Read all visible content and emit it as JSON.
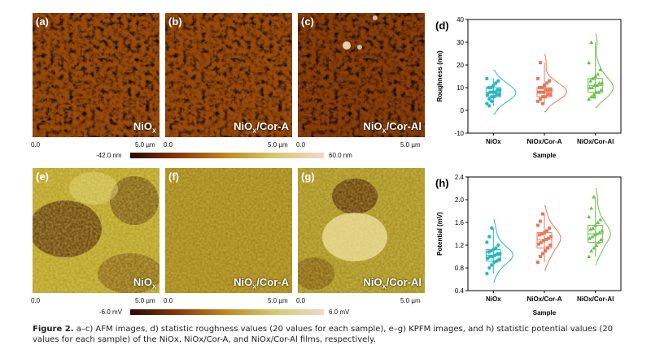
{
  "panels_top": [
    {
      "label": "(a)",
      "name": "NiOx",
      "suffix": ""
    },
    {
      "label": "(b)",
      "name": "NiOx",
      "suffix": "/Cor-A"
    },
    {
      "label": "(c)",
      "name": "NiOx",
      "suffix": "/Cor-Al"
    }
  ],
  "panels_bottom": [
    {
      "label": "(e)",
      "name": "NiOx",
      "suffix": ""
    },
    {
      "label": "(f)",
      "name": "NiOx",
      "suffix": "/Cor-A"
    },
    {
      "label": "(g)",
      "name": "NiOx",
      "suffix": "/Cor-Al"
    }
  ],
  "scale": {
    "start": "0.0",
    "end": "5.0 µm"
  },
  "colorbar_top": {
    "min": "-42.0 nm",
    "max": "60.0 nm"
  },
  "colorbar_bottom": {
    "min": "-6.0 mV",
    "max": "6.0 mV"
  },
  "colors": {
    "afm_dark": "#5a1a00",
    "afm_mid": "#b5651d",
    "afm_light": "#e6d15a",
    "kpfm_dark": "#4a2a00",
    "kpfm_light": "#e8dc7a",
    "teal": "#2ab7c4",
    "salmon": "#e8785a",
    "green": "#6cc24a"
  },
  "chart_data": [
    {
      "type": "scatter",
      "panel": "(d)",
      "title": "",
      "xlabel": "Sample",
      "ylabel": "Roughness (nm)",
      "categories": [
        "NiOx",
        "NiOx/Cor-A",
        "NiOx/Cor-Al"
      ],
      "ylim": [
        -10,
        40
      ],
      "yticks": [
        -10,
        0,
        10,
        20,
        30,
        40
      ],
      "series": [
        {
          "values": [
            3,
            5,
            6,
            6,
            7,
            7,
            7,
            8,
            8,
            8,
            9,
            9,
            10,
            10,
            11,
            12,
            13,
            14,
            2,
            4
          ]
        },
        {
          "values": [
            4,
            5,
            6,
            6,
            7,
            7,
            8,
            8,
            8,
            9,
            9,
            9,
            10,
            10,
            11,
            12,
            13,
            14,
            21,
            3
          ]
        },
        {
          "values": [
            5,
            6,
            7,
            8,
            8,
            9,
            10,
            10,
            11,
            11,
            12,
            12,
            13,
            14,
            15,
            16,
            18,
            21,
            30,
            6
          ]
        }
      ]
    },
    {
      "type": "scatter",
      "panel": "(h)",
      "title": "",
      "xlabel": "Sample",
      "ylabel": "Potential (mV)",
      "categories": [
        "NiOx",
        "NiOx/Cor-A",
        "NiOx/Cor-Al"
      ],
      "ylim": [
        0.4,
        2.4
      ],
      "yticks": [
        0.4,
        0.8,
        1.2,
        1.6,
        2.0,
        2.4
      ],
      "series": [
        {
          "values": [
            0.7,
            0.8,
            0.85,
            0.9,
            0.92,
            0.95,
            0.97,
            1.0,
            1.0,
            1.02,
            1.05,
            1.05,
            1.08,
            1.1,
            1.12,
            1.15,
            1.2,
            1.25,
            1.35,
            1.5
          ]
        },
        {
          "values": [
            0.9,
            1.0,
            1.05,
            1.1,
            1.15,
            1.2,
            1.22,
            1.25,
            1.28,
            1.3,
            1.32,
            1.35,
            1.38,
            1.4,
            1.42,
            1.45,
            1.5,
            1.55,
            1.62,
            1.75
          ]
        },
        {
          "values": [
            1.0,
            1.1,
            1.15,
            1.2,
            1.25,
            1.3,
            1.32,
            1.35,
            1.38,
            1.4,
            1.42,
            1.45,
            1.48,
            1.5,
            1.55,
            1.6,
            1.65,
            1.7,
            1.85,
            2.05
          ]
        }
      ]
    }
  ],
  "caption": {
    "fig": "Figure 2.",
    "text": "a–c) AFM images, d) statistic roughness values (20 values for each sample), e–g) KPFM images, and h) statistic potential values (20 values for each sample) of the NiOx, NiOx/Cor-A, and NiOx/Cor-Al films, respectively."
  }
}
